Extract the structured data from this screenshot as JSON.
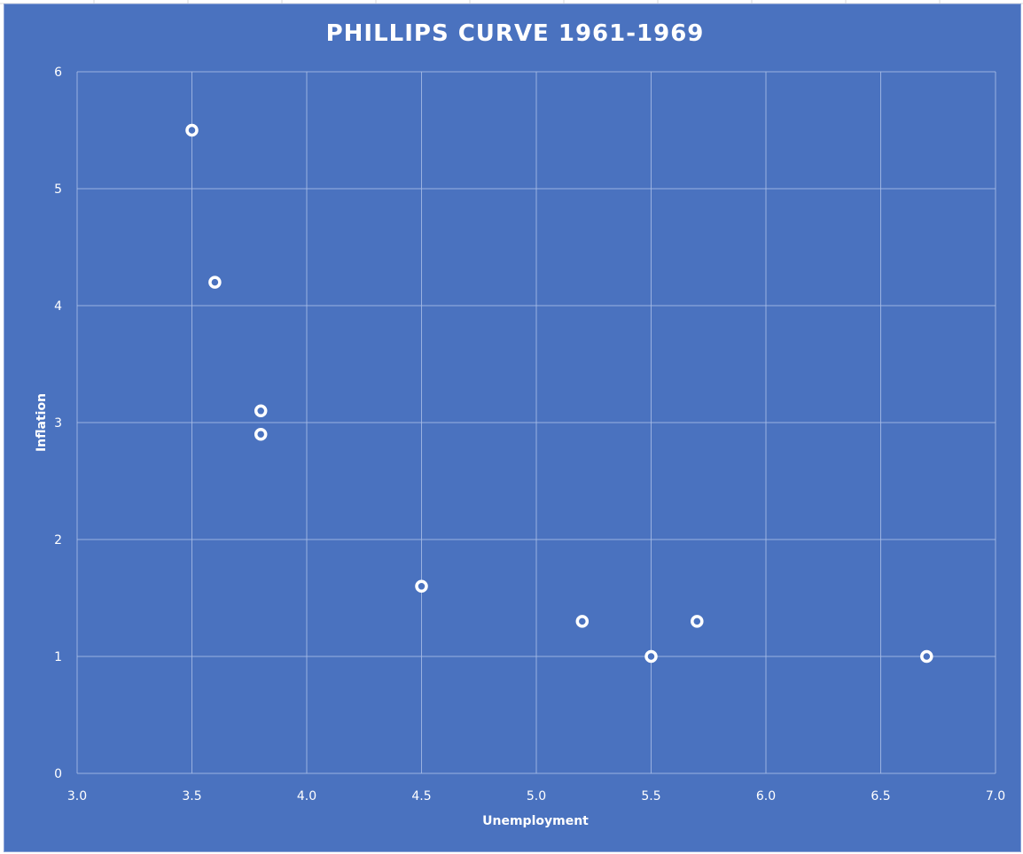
{
  "chart_data": {
    "type": "scatter",
    "title": "PHILLIPS CURVE 1961-1969",
    "xlabel": "Unemployment",
    "ylabel": "Inflation",
    "xlim": [
      3.0,
      7.0
    ],
    "ylim": [
      0,
      6
    ],
    "x_ticks": [
      "3.0",
      "3.5",
      "4.0",
      "4.5",
      "5.0",
      "5.5",
      "6.0",
      "6.5",
      "7.0"
    ],
    "y_ticks": [
      "0",
      "1",
      "2",
      "3",
      "4",
      "5",
      "6"
    ],
    "grid": true,
    "legend": "none",
    "colors": {
      "background": "#4a72bf",
      "gridline": "#a9bde6",
      "marker": "#ffffff",
      "text": "#ffffff"
    },
    "series": [
      {
        "points": [
          {
            "x": 3.5,
            "y": 5.5
          },
          {
            "x": 3.6,
            "y": 4.2
          },
          {
            "x": 3.8,
            "y": 3.1
          },
          {
            "x": 3.8,
            "y": 2.9
          },
          {
            "x": 4.5,
            "y": 1.6
          },
          {
            "x": 5.2,
            "y": 1.3
          },
          {
            "x": 5.5,
            "y": 1.0
          },
          {
            "x": 5.7,
            "y": 1.3
          },
          {
            "x": 6.7,
            "y": 1.0
          }
        ]
      }
    ]
  }
}
